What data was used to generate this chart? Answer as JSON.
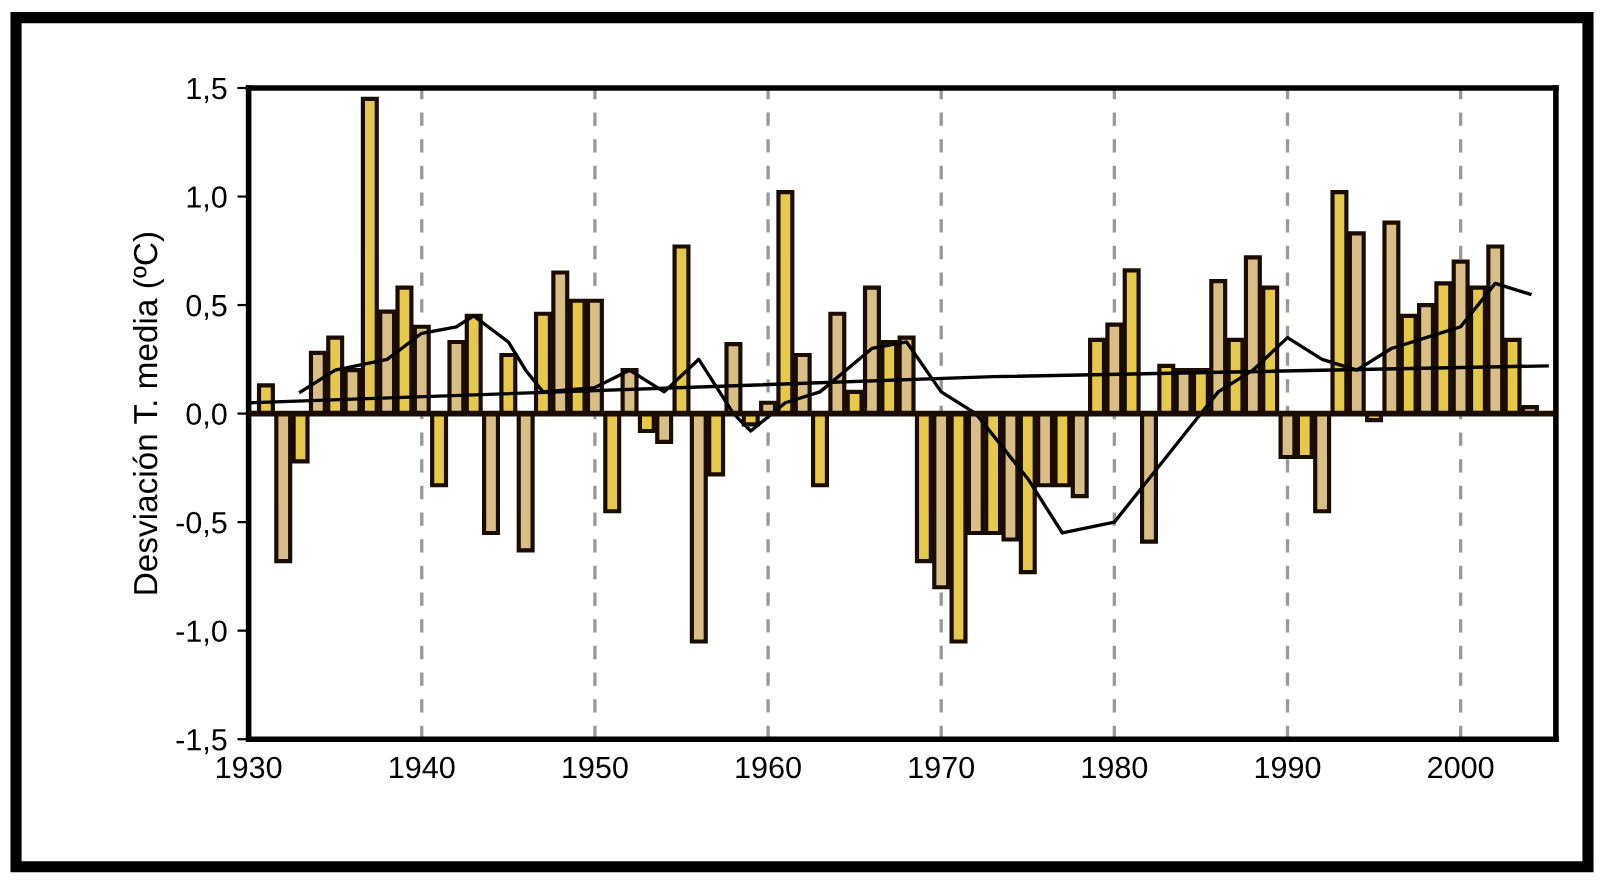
{
  "chart_data": {
    "type": "bar",
    "ylabel": "Desviación T. media (ºC)",
    "x": [
      1931,
      1932,
      1933,
      1934,
      1935,
      1936,
      1937,
      1938,
      1939,
      1940,
      1941,
      1942,
      1943,
      1944,
      1945,
      1946,
      1947,
      1948,
      1949,
      1950,
      1951,
      1952,
      1953,
      1954,
      1955,
      1956,
      1957,
      1958,
      1959,
      1960,
      1961,
      1962,
      1963,
      1964,
      1965,
      1966,
      1967,
      1968,
      1969,
      1970,
      1971,
      1972,
      1973,
      1974,
      1975,
      1976,
      1977,
      1978,
      1979,
      1980,
      1981,
      1982,
      1983,
      1984,
      1985,
      1986,
      1987,
      1988,
      1989,
      1990,
      1991,
      1992,
      1993,
      1994,
      1995,
      1996,
      1997,
      1998,
      1999,
      2000,
      2001,
      2002,
      2003,
      2004
    ],
    "series": [
      {
        "colors": [
          "#e6c84a",
          "#d9bf85",
          "#e6c84a",
          "#d9bf85",
          "#e6c84a",
          "#d9bf85",
          "#e6c84a",
          "#d9bf85",
          "#e6c84a",
          "#d9bf85",
          "#e6c84a",
          "#d9bf85",
          "#e6c84a",
          "#d9bf85",
          "#e6c84a",
          "#d9bf85",
          "#e6c84a",
          "#d9bf85",
          "#e6c84a",
          "#d9bf85",
          "#e6c84a",
          "#d9bf85",
          "#e6c84a",
          "#d9bf85",
          "#e6c84a",
          "#d9bf85",
          "#e6c84a",
          "#d9bf85",
          "#e6c84a",
          "#d9bf85",
          "#e6c84a",
          "#d9bf85",
          "#e6c84a",
          "#d9bf85",
          "#e6c84a",
          "#d9bf85",
          "#e6c84a",
          "#d9bf85",
          "#e6c84a",
          "#d9bf85",
          "#e6c84a",
          "#d9bf85",
          "#e6c84a",
          "#d9bf85",
          "#e6c84a",
          "#d9bf85",
          "#e6c84a",
          "#d9bf85",
          "#e6c84a",
          "#d9bf85",
          "#e6c84a",
          "#d9bf85",
          "#e6c84a",
          "#d9bf85",
          "#e6c84a",
          "#d9bf85",
          "#e6c84a",
          "#d9bf85",
          "#e6c84a",
          "#d9bf85",
          "#e6c84a",
          "#d9bf85",
          "#e6c84a",
          "#d9bf85",
          "#e6c84a",
          "#d9bf85",
          "#e6c84a",
          "#d9bf85",
          "#e6c84a",
          "#d9bf85",
          "#e6c84a",
          "#d9bf85",
          "#e6c84a",
          "#d9bf85"
        ],
        "values": [
          0.13,
          -0.68,
          -0.22,
          0.28,
          0.35,
          0.2,
          1.45,
          0.47,
          0.58,
          0.4,
          -0.33,
          0.33,
          0.45,
          -0.55,
          0.27,
          -0.63,
          0.46,
          0.65,
          0.52,
          0.52,
          -0.45,
          0.2,
          -0.08,
          -0.13,
          0.77,
          -1.05,
          -0.28,
          0.32,
          -0.05,
          0.05,
          1.02,
          0.27,
          -0.33,
          0.46,
          0.1,
          0.58,
          0.33,
          0.35,
          -0.68,
          -0.8,
          -1.05,
          -0.55,
          -0.55,
          -0.58,
          -0.73,
          -0.33,
          -0.33,
          -0.38,
          0.34,
          0.41,
          0.66,
          -0.59,
          0.22,
          0.2,
          0.2,
          0.61,
          0.34,
          0.72,
          0.58,
          -0.2,
          -0.2,
          -0.45,
          1.02,
          0.83,
          -0.03,
          0.88,
          0.45,
          0.5,
          0.6,
          0.7,
          0.58,
          0.77,
          0.34,
          0.03
        ]
      },
      {
        "type": "line",
        "color": "#000000",
        "x": [
          1933,
          1935,
          1938,
          1940,
          1942,
          1943,
          1945,
          1946,
          1947,
          1950,
          1952,
          1954,
          1956,
          1958,
          1959,
          1961,
          1963,
          1966,
          1968,
          1970,
          1972,
          1975,
          1977,
          1980,
          1982,
          1984,
          1986,
          1988,
          1990,
          1992,
          1994,
          1996,
          1998,
          2000,
          2002,
          2004
        ],
        "values": [
          0.1,
          0.2,
          0.25,
          0.37,
          0.4,
          0.45,
          0.33,
          0.2,
          0.1,
          0.12,
          0.2,
          0.1,
          0.25,
          0.0,
          -0.08,
          0.05,
          0.1,
          0.3,
          0.33,
          0.1,
          0.0,
          -0.3,
          -0.55,
          -0.5,
          -0.3,
          -0.1,
          0.1,
          0.2,
          0.35,
          0.25,
          0.2,
          0.3,
          0.35,
          0.4,
          0.6,
          0.55
        ]
      },
      {
        "type": "line",
        "color": "#000000",
        "x": [
          1930,
          1973,
          2005
        ],
        "values": [
          0.05,
          0.17,
          0.22
        ]
      }
    ],
    "xlim": [
      1930,
      2005.5
    ],
    "xticks": [
      1930,
      1940,
      1950,
      1960,
      1970,
      1980,
      1990,
      2000
    ],
    "ylim": [
      -1.5,
      1.5
    ],
    "yticks": [
      {
        "value": -1.5,
        "label": "-1,5"
      },
      {
        "value": -1.0,
        "label": "-1,0"
      },
      {
        "value": -0.5,
        "label": "-0,5"
      },
      {
        "value": 0.0,
        "label": "0,0"
      },
      {
        "value": 0.5,
        "label": "0,5"
      },
      {
        "value": 1.0,
        "label": "1,0"
      },
      {
        "value": 1.5,
        "label": "1,5"
      }
    ],
    "grid": "x"
  }
}
